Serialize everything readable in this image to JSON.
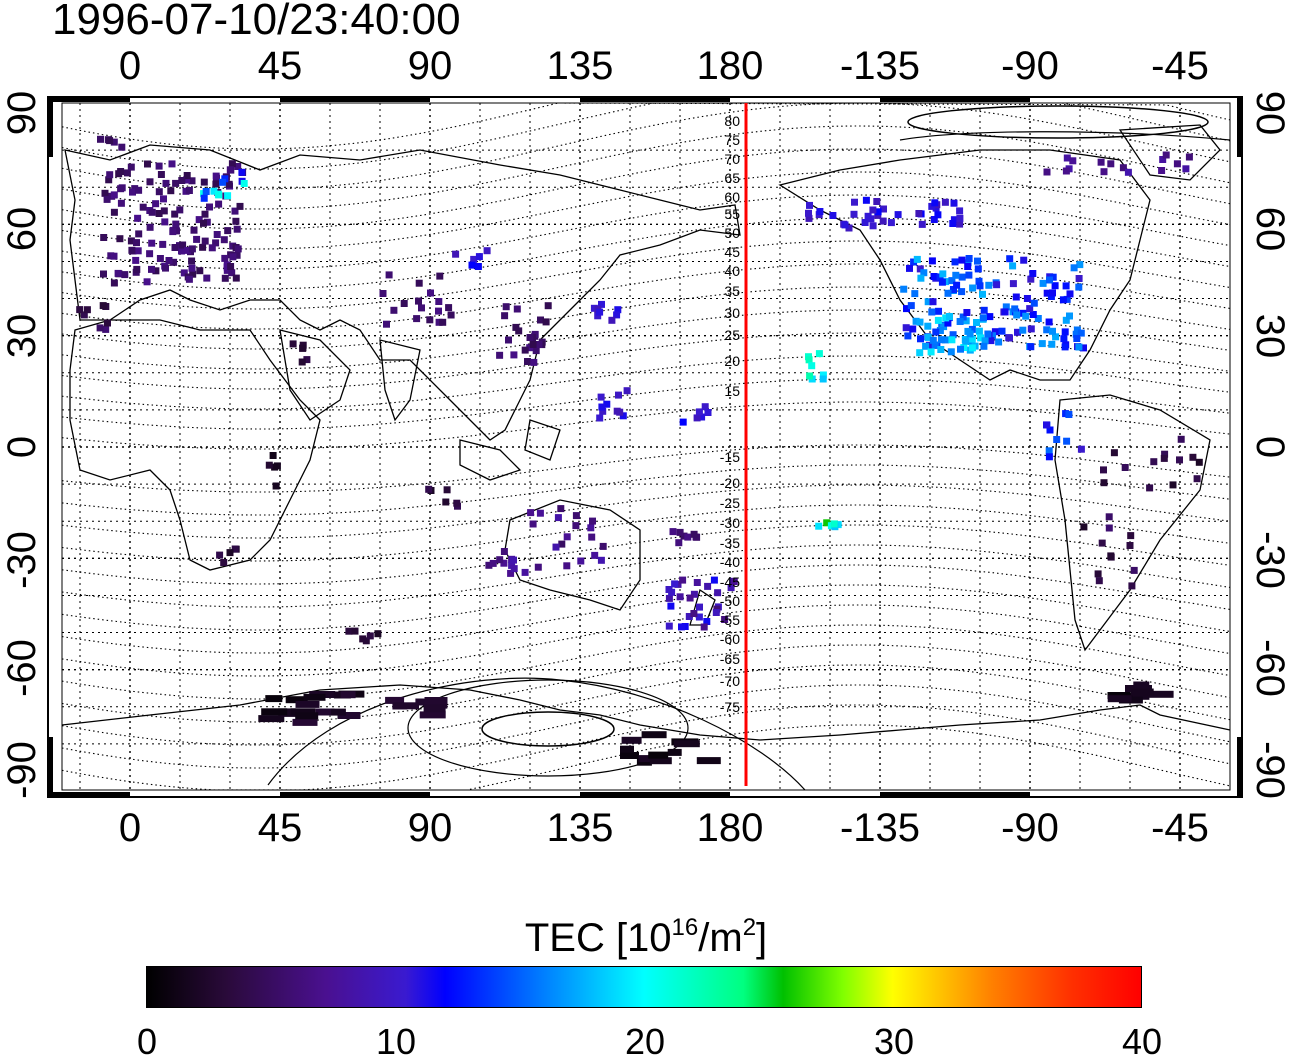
{
  "timestamp": "1996-07-10/23:40:00",
  "map": {
    "top_lon_ticks": [
      "0",
      "45",
      "90",
      "135",
      "180",
      "-135",
      "-90",
      "-45"
    ],
    "bottom_lon_ticks": [
      "0",
      "45",
      "90",
      "135",
      "180",
      "-135",
      "-90",
      "-45"
    ],
    "left_lat_ticks": [
      "90",
      "60",
      "30",
      "0",
      "-30",
      "-60",
      "-90"
    ],
    "right_lat_ticks": [
      "90",
      "60",
      "30",
      "0",
      "-30",
      "-60",
      "-90"
    ],
    "contour_labels": [
      "80",
      "75",
      "70",
      "65",
      "60",
      "55",
      "50",
      "45",
      "40",
      "35",
      "30",
      "25",
      "20",
      "15",
      "-15",
      "-20",
      "-25",
      "-30",
      "-35",
      "-40",
      "-45",
      "-50",
      "-55",
      "-60",
      "-65",
      "-70",
      "-75"
    ],
    "meridian_line_color": "#ff0000",
    "meridian_line_lon": 183
  },
  "colorbar": {
    "title": "TEC  [10",
    "title_sup1": "16",
    "title_mid": "/m",
    "title_sup2": "2",
    "title_end": "]",
    "ticks": [
      "0",
      "10",
      "20",
      "30",
      "40"
    ],
    "range": [
      0,
      40
    ],
    "colormap": "rainbow (black-purple-blue-cyan-green-yellow-red)"
  }
}
